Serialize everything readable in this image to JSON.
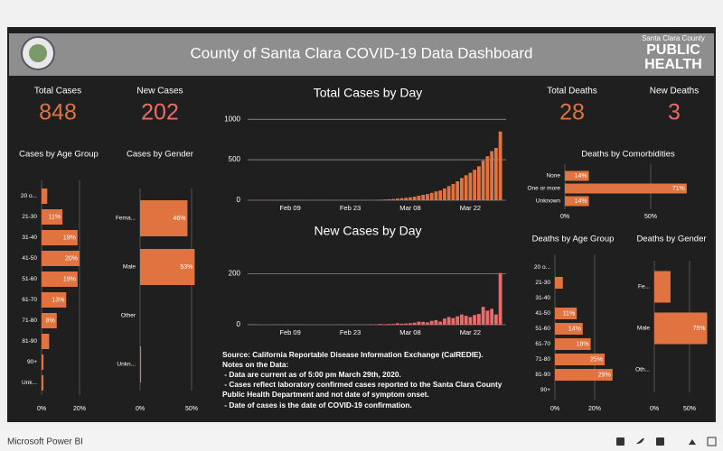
{
  "header": {
    "title": "County of Santa Clara COVID-19 Data Dashboard",
    "logo": [
      "Santa Clara County",
      "PUBLIC",
      "HEALTH"
    ]
  },
  "kpis": [
    {
      "label": "Total Cases",
      "value": 848,
      "color": "#e0733f"
    },
    {
      "label": "New Cases",
      "value": 202,
      "color": "#ef6a64"
    },
    {
      "label": "Total Deaths",
      "value": 28,
      "color": "#e0733f"
    },
    {
      "label": "New Deaths",
      "value": 3,
      "color": "#ef6a64"
    }
  ],
  "chart_data": [
    {
      "type": "hbar",
      "title": "Cases by Age Group",
      "color": "#e0733f",
      "categories": [
        "20 o...",
        "21-30",
        "31-40",
        "41-50",
        "51-60",
        "61-70",
        "71-80",
        "81-90",
        "90+",
        "Unk..."
      ],
      "values": [
        3,
        11,
        19,
        20,
        19,
        13,
        8,
        4,
        1,
        1
      ],
      "value_labels": [
        null,
        "11%",
        "19%",
        "20%",
        "19%",
        "13%",
        "8%",
        null,
        null,
        null
      ],
      "xlim": [
        0,
        25
      ],
      "xticks": [
        {
          "value": 0,
          "label": "0%"
        },
        {
          "value": 20,
          "label": "20%"
        }
      ]
    },
    {
      "type": "hbar",
      "title": "Cases by Gender",
      "color": "#e0733f",
      "categories": [
        "Fema...",
        "Male",
        "Other",
        "Unkn..."
      ],
      "values": [
        46,
        53,
        0,
        1
      ],
      "value_labels": [
        "46%",
        "53%",
        null,
        null
      ],
      "xlim": [
        0,
        55
      ],
      "xticks": [
        {
          "value": 0,
          "label": "0%"
        },
        {
          "value": 50,
          "label": "50%"
        }
      ]
    },
    {
      "type": "bar",
      "title": "Total Cases by Day",
      "color": "#e0733f",
      "categories": [
        null,
        null,
        null,
        null,
        null,
        null,
        null,
        null,
        null,
        "Feb 09",
        null,
        null,
        null,
        null,
        null,
        null,
        null,
        null,
        null,
        null,
        null,
        null,
        null,
        "Feb 23",
        null,
        null,
        null,
        null,
        null,
        null,
        null,
        null,
        null,
        null,
        null,
        null,
        null,
        "Mar 08",
        null,
        null,
        null,
        null,
        null,
        null,
        null,
        null,
        null,
        null,
        null,
        null,
        null,
        "Mar 22",
        null,
        null,
        null,
        null,
        null,
        null,
        null
      ],
      "values": [
        1,
        2,
        2,
        2,
        2,
        2,
        2,
        2,
        2,
        2,
        2,
        2,
        2,
        2,
        2,
        2,
        2,
        2,
        2,
        2,
        2,
        2,
        2,
        2,
        2,
        2,
        2,
        2,
        3,
        4,
        7,
        9,
        12,
        15,
        21,
        25,
        30,
        36,
        44,
        56,
        67,
        76,
        91,
        109,
        121,
        145,
        175,
        201,
        234,
        274,
        309,
        339,
        377,
        419,
        489,
        544,
        606,
        646,
        848
      ],
      "ylim": [
        0,
        1080
      ],
      "yticks": [
        0,
        500,
        1000
      ],
      "grid": true
    },
    {
      "type": "bar",
      "title": "New Cases by Day",
      "color": "#e86c6c",
      "categories": [
        null,
        null,
        null,
        null,
        null,
        null,
        null,
        null,
        null,
        "Feb 09",
        null,
        null,
        null,
        null,
        null,
        null,
        null,
        null,
        null,
        null,
        null,
        null,
        null,
        "Feb 23",
        null,
        null,
        null,
        null,
        null,
        null,
        null,
        null,
        null,
        null,
        null,
        null,
        null,
        "Mar 08",
        null,
        null,
        null,
        null,
        null,
        null,
        null,
        null,
        null,
        null,
        null,
        null,
        null,
        "Mar 22",
        null,
        null,
        null,
        null,
        null,
        null,
        null
      ],
      "values": [
        1,
        1,
        0,
        0,
        0,
        0,
        0,
        0,
        0,
        0,
        0,
        0,
        0,
        0,
        0,
        0,
        0,
        0,
        0,
        0,
        0,
        0,
        0,
        0,
        0,
        0,
        0,
        0,
        1,
        1,
        3,
        2,
        3,
        3,
        6,
        4,
        5,
        6,
        8,
        12,
        11,
        9,
        15,
        18,
        12,
        24,
        30,
        26,
        33,
        40,
        35,
        30,
        38,
        42,
        70,
        55,
        62,
        40,
        202
      ],
      "ylim": [
        0,
        215
      ],
      "yticks": [
        0,
        200
      ],
      "grid": true
    },
    {
      "type": "hbar",
      "title": "Deaths by Comorbidities",
      "color": "#e0733f",
      "categories": [
        "None",
        "One or more",
        "Unknown"
      ],
      "values": [
        14,
        71,
        14
      ],
      "value_labels": [
        "14%",
        "71%",
        "14%"
      ],
      "xlim": [
        0,
        80
      ],
      "xticks": [
        {
          "value": 0,
          "label": "0%"
        },
        {
          "value": 50,
          "label": "50%"
        }
      ]
    },
    {
      "type": "hbar",
      "title": "Deaths by Age Group",
      "color": "#e0733f",
      "categories": [
        "20 o...",
        "21-30",
        "31-40",
        "41-50",
        "51-60",
        "61-70",
        "71-80",
        "81-90",
        "90+"
      ],
      "values": [
        0,
        4,
        0,
        11,
        14,
        18,
        25,
        29,
        0
      ],
      "value_labels": [
        null,
        null,
        null,
        "11%",
        "14%",
        "18%",
        "25%",
        "29%",
        null
      ],
      "xlim": [
        0,
        32
      ],
      "xticks": [
        {
          "value": 0,
          "label": "0%"
        },
        {
          "value": 20,
          "label": "20%"
        }
      ]
    },
    {
      "type": "hbar",
      "title": "Deaths by Gender",
      "color": "#e0733f",
      "categories": [
        "Fe...",
        "Male",
        "Oth..."
      ],
      "values": [
        23,
        75,
        0
      ],
      "value_labels": [
        null,
        "75%",
        null
      ],
      "xlim": [
        0,
        80
      ],
      "xticks": [
        {
          "value": 0,
          "label": "0%"
        },
        {
          "value": 50,
          "label": "50%"
        }
      ]
    }
  ],
  "notes": [
    "Source: California Reportable Disease Information Exchange (CalREDIE).",
    "Notes on the Data:",
    " - Data are current as of 5:00 pm March 29th, 2020.",
    " - Cases reflect laboratory confirmed cases reported to the Santa Clara County",
    "Public Health Department and not date of symptom onset.",
    " - Date of cases is the date of COVID-19 confirmation."
  ],
  "footer": {
    "brand": "Microsoft Power BI"
  }
}
